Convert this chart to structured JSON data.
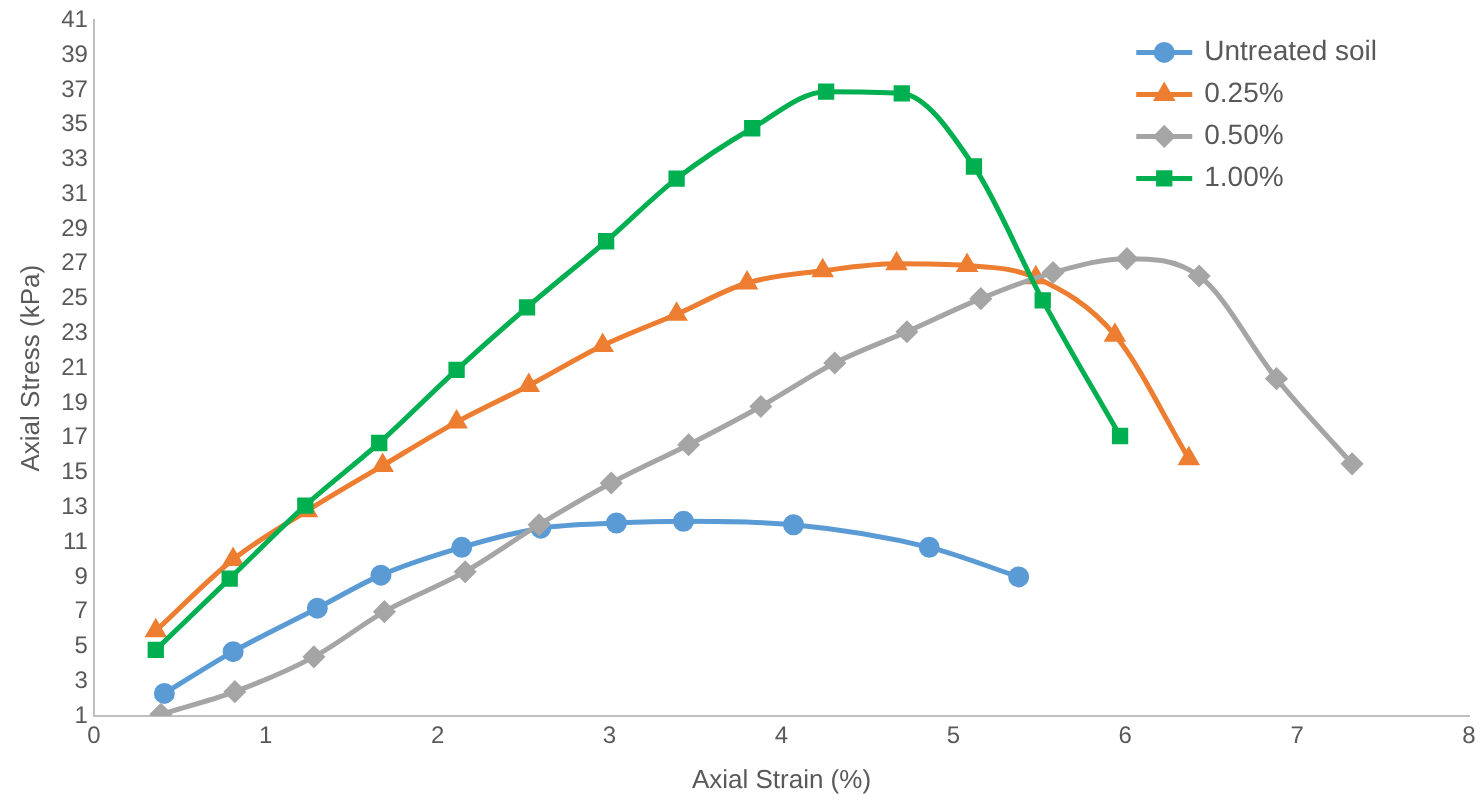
{
  "chart_data": {
    "type": "line",
    "xlabel": "Axial Strain (%)",
    "ylabel": "Axial Stress (kPa)",
    "xlim": [
      0,
      8
    ],
    "xticks": [
      0,
      1,
      2,
      3,
      4,
      5,
      6,
      7,
      8
    ],
    "ylim": [
      1,
      41
    ],
    "yticks": [
      1,
      3,
      5,
      7,
      9,
      11,
      13,
      15,
      17,
      19,
      21,
      23,
      25,
      27,
      29,
      31,
      33,
      35,
      37,
      39,
      41
    ],
    "grid": false,
    "legend": "top right",
    "line_style": "solid",
    "series": [
      {
        "name": "Untreated soil",
        "color": "#5b9bd5",
        "marker": "circle",
        "x": [
          0.41,
          0.81,
          1.3,
          1.67,
          2.14,
          2.6,
          3.04,
          3.43,
          4.07,
          4.86,
          5.38
        ],
        "values": [
          2.3,
          4.7,
          7.2,
          9.1,
          10.7,
          11.8,
          12.1,
          12.2,
          12.0,
          10.7,
          9.0
        ]
      },
      {
        "name": "0.25%",
        "color": "#ed7d31",
        "marker": "triangle",
        "x": [
          0.36,
          0.81,
          1.24,
          1.68,
          2.11,
          2.53,
          2.96,
          3.39,
          3.8,
          4.24,
          4.67,
          5.08,
          5.48,
          5.94,
          6.37
        ],
        "values": [
          5.9,
          10.0,
          12.8,
          15.4,
          17.9,
          20.0,
          22.3,
          24.1,
          25.9,
          26.6,
          27.0,
          26.9,
          26.2,
          22.9,
          15.8
        ]
      },
      {
        "name": "0.50%",
        "color": "#a5a5a5",
        "marker": "diamond",
        "x": [
          0.39,
          0.82,
          1.28,
          1.69,
          2.16,
          2.59,
          3.01,
          3.46,
          3.88,
          4.31,
          4.73,
          5.16,
          5.58,
          6.01,
          6.43,
          6.88,
          7.32
        ],
        "values": [
          1.1,
          2.4,
          4.4,
          7.0,
          9.3,
          12.0,
          14.4,
          16.6,
          18.8,
          21.3,
          23.1,
          25.0,
          26.5,
          27.3,
          26.3,
          20.4,
          15.5
        ]
      },
      {
        "name": "1.00%",
        "color": "#00b050",
        "marker": "square",
        "x": [
          0.36,
          0.79,
          1.23,
          1.66,
          2.11,
          2.52,
          2.98,
          3.39,
          3.83,
          4.26,
          4.7,
          5.12,
          5.52,
          5.97
        ],
        "values": [
          4.8,
          8.9,
          13.1,
          16.7,
          20.9,
          24.5,
          28.3,
          31.9,
          34.8,
          36.9,
          36.8,
          32.6,
          24.9,
          17.1
        ]
      }
    ]
  }
}
